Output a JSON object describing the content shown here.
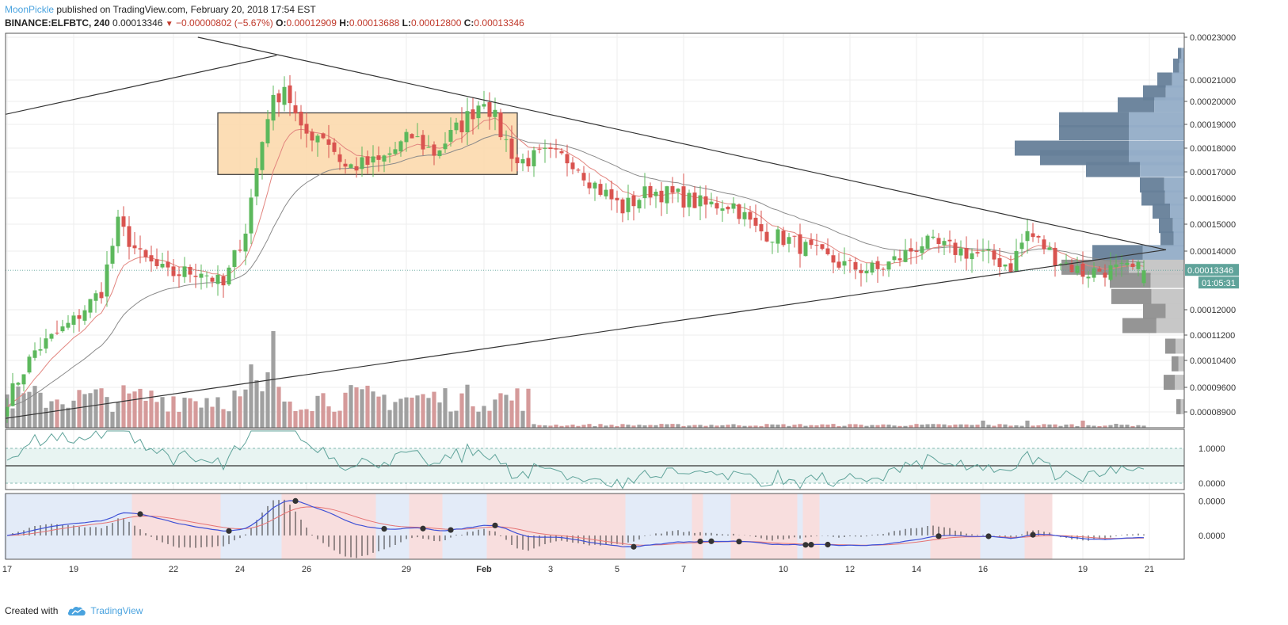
{
  "header": {
    "author": "MoonPickle",
    "published_text": "published on TradingView.com, February 20, 2018 17:54 EST",
    "symbol": "BINANCE:ELFBTC, 240",
    "last": "0.00013346",
    "change": "−0.00000802 (−5.67%)",
    "o_label": "O:",
    "o_value": "0.00012909",
    "h_label": "H:",
    "h_value": "0.00013688",
    "l_label": "L:",
    "l_value": "0.00012800",
    "c_label": "C:",
    "c_value": "0.00013346"
  },
  "footer": {
    "created_with": "Created with",
    "brand": "TradingView"
  },
  "colors": {
    "up": "#5cb85c",
    "down": "#d9534f",
    "box_fill": "#fcd7a8",
    "box_stroke": "#444444",
    "ema_fast": "#e2857f",
    "ema_slow": "#8a8a8a",
    "vol_up": "#a0a0a0",
    "vol_down": "#d59a9a",
    "stoch_line": "#5fa39a",
    "stoch_band": "#e8f4f2",
    "macd_line": "#3f51d6",
    "signal_line": "#e57373",
    "bg_blue": "#e3ebf8",
    "bg_red": "#f8dede",
    "vp_dark": "#667f99",
    "vp_light": "#93adc7"
  },
  "chart_data": {
    "type": "candlestick",
    "price_axis_ticks": [
      "0.00023000",
      "0.00021000",
      "0.00020000",
      "0.00019000",
      "0.00018000",
      "0.00017000",
      "0.00016000",
      "0.00015000",
      "0.00014000",
      "0.00012000",
      "0.00011200",
      "0.00010400",
      "0.00009600",
      "0.00008900"
    ],
    "price_ticks_numeric": [
      0.00023,
      0.00021,
      0.0002,
      0.00019,
      0.00018,
      0.00017,
      0.00016,
      0.00015,
      0.00014,
      0.00012,
      0.000112,
      0.000104,
      9.6e-05,
      8.9e-05
    ],
    "last_price_label": "0.00013346",
    "countdown_label": "01:05:31",
    "date_axis_ticks": [
      "17",
      "19",
      "22",
      "24",
      "26",
      "29",
      "Feb",
      "3",
      "5",
      "7",
      "10",
      "12",
      "14",
      "16",
      "19",
      "21"
    ],
    "date_axis_index": [
      0,
      12,
      30,
      42,
      54,
      72,
      86,
      98,
      110,
      122,
      140,
      152,
      164,
      176,
      194,
      206
    ],
    "n_bars": 206,
    "close_path": [
      [
        0,
        9.25e-05
      ],
      [
        5,
        0.000107
      ],
      [
        12,
        0.0001165
      ],
      [
        17,
        0.0001265
      ],
      [
        20,
        0.00015
      ],
      [
        24,
        0.000138
      ],
      [
        29,
        0.000132
      ],
      [
        35,
        0.0001335
      ],
      [
        39,
        0.000128
      ],
      [
        43,
        0.000148
      ],
      [
        47,
        0.000195
      ],
      [
        50,
        0.000208
      ],
      [
        53,
        0.000186
      ],
      [
        57,
        0.000186
      ],
      [
        61,
        0.000172
      ],
      [
        67,
        0.000174
      ],
      [
        73,
        0.000185
      ],
      [
        77,
        0.000178
      ],
      [
        82,
        0.00019
      ],
      [
        86,
        0.000202
      ],
      [
        89,
        0.000187
      ],
      [
        92,
        0.000174
      ],
      [
        97,
        0.000177
      ],
      [
        102,
        0.000175
      ],
      [
        106,
        0.000165
      ],
      [
        111,
        0.000156
      ],
      [
        116,
        0.000163
      ],
      [
        121,
        0.0001605
      ],
      [
        126,
        0.000157
      ],
      [
        129,
        0.000158
      ],
      [
        131,
        0.0001575
      ],
      [
        135,
        0.000148
      ],
      [
        141,
        0.000144
      ],
      [
        147,
        0.000138
      ],
      [
        152,
        0.0001345
      ],
      [
        157,
        0.0001335
      ],
      [
        162,
        0.000139
      ],
      [
        165,
        0.000143
      ],
      [
        170,
        0.000141
      ],
      [
        177,
        0.000138
      ],
      [
        181,
        0.000135
      ],
      [
        184,
        0.000147
      ],
      [
        189,
        0.000138
      ],
      [
        194,
        0.0001325
      ],
      [
        197,
        0.0001335
      ]
    ],
    "rect_zone": {
      "x0": 38,
      "x1": 92,
      "y_top": 0.000195,
      "y_bottom": 0.000169
    },
    "trendlines": [
      {
        "x0": -1,
        "y0": 0.000194,
        "x1": 48.6,
        "y1": 0.0002215
      },
      {
        "x0": 34.4,
        "y0": 0.00023,
        "x1": 209,
        "y1": 0.0001405
      },
      {
        "x0": -1,
        "y0": 8.7e-05,
        "x1": 209,
        "y1": 0.0001405
      }
    ],
    "volume_profile_levels": [
      0.0002215,
      0.0002165,
      0.00021,
      0.000204,
      0.0001985,
      0.000192,
      0.0001865,
      0.00018,
      0.000176,
      0.000171,
      0.000165,
      0.00016,
      0.000155,
      0.0001495,
      0.0001445,
      0.0001395,
      0.0001345,
      0.00013,
      0.0001245,
      0.0001195,
      0.000115,
      0.0001085,
      0.000103,
      9.75e-05,
      9.05e-05
    ],
    "volume_profile_sizes": [
      8,
      14,
      34,
      52,
      84,
      158,
      158,
      214,
      182,
      124,
      56,
      54,
      40,
      32,
      30,
      116,
      155,
      94,
      92,
      52,
      78,
      24,
      16,
      26,
      10
    ],
    "stoch_axis_ticks": [
      "1.0000",
      "0.0000"
    ],
    "stoch_levels": [
      1,
      0
    ],
    "macd_axis_ticks": [
      "0.0000",
      "0.0000"
    ],
    "macd_background_segments": [
      {
        "x0": 0,
        "x1": 23,
        "c": "blue"
      },
      {
        "x0": 23,
        "x1": 39,
        "c": "red"
      },
      {
        "x0": 39,
        "x1": 50,
        "c": "blue"
      },
      {
        "x0": 50,
        "x1": 67,
        "c": "red"
      },
      {
        "x0": 67,
        "x1": 73,
        "c": "blue"
      },
      {
        "x0": 73,
        "x1": 79,
        "c": "red"
      },
      {
        "x0": 79,
        "x1": 87,
        "c": "blue"
      },
      {
        "x0": 87,
        "x1": 112,
        "c": "red"
      },
      {
        "x0": 112,
        "x1": 124,
        "c": "blue"
      },
      {
        "x0": 124,
        "x1": 126,
        "c": "red"
      },
      {
        "x0": 126,
        "x1": 131,
        "c": "blue"
      },
      {
        "x0": 131,
        "x1": 143,
        "c": "red"
      },
      {
        "x0": 143,
        "x1": 144,
        "c": "blue"
      },
      {
        "x0": 144,
        "x1": 147,
        "c": "red"
      },
      {
        "x0": 147,
        "x1": 167,
        "c": "blue"
      },
      {
        "x0": 167,
        "x1": 176,
        "c": "red"
      },
      {
        "x0": 176,
        "x1": 184,
        "c": "blue"
      },
      {
        "x0": 184,
        "x1": 189,
        "c": "red"
      }
    ],
    "macd_cross_points": [
      24,
      40,
      52,
      68,
      75,
      80,
      88,
      113,
      125,
      127,
      132,
      144,
      145,
      148,
      168,
      177,
      185
    ]
  }
}
